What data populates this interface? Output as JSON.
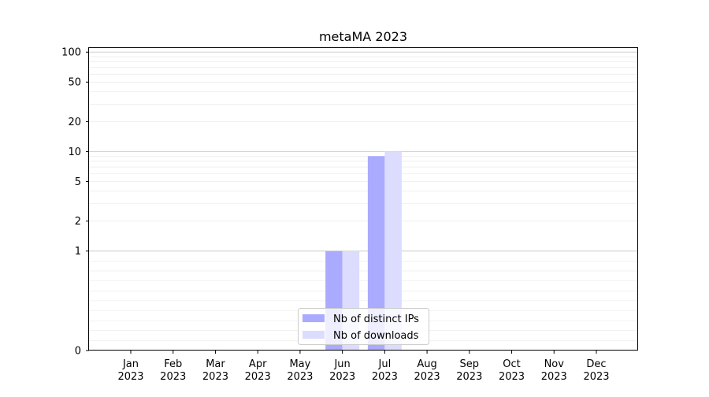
{
  "chart_data": {
    "type": "bar",
    "title": "metaMA 2023",
    "xlabel": "",
    "ylabel": "",
    "categories": [
      "Jan\n2023",
      "Feb\n2023",
      "Mar\n2023",
      "Apr\n2023",
      "May\n2023",
      "Jun\n2023",
      "Jul\n2023",
      "Aug\n2023",
      "Sep\n2023",
      "Oct\n2023",
      "Nov\n2023",
      "Dec\n2023"
    ],
    "series": [
      {
        "name": "Nb of distinct IPs",
        "values": [
          0,
          0,
          0,
          0,
          0,
          1,
          9,
          0,
          0,
          0,
          0,
          0
        ],
        "color": "#aaaaff"
      },
      {
        "name": "Nb of downloads",
        "values": [
          0,
          0,
          0,
          0,
          0,
          1,
          10,
          0,
          0,
          0,
          0,
          0
        ],
        "color": "#dcdcff"
      }
    ],
    "yscale": "symlog",
    "ylim": [
      0,
      110
    ],
    "yticks": [
      0,
      1,
      2,
      5,
      10,
      20,
      50,
      100
    ],
    "ytick_labels": [
      "0",
      "1",
      "2",
      "5",
      "10",
      "20",
      "50",
      "100"
    ],
    "grid": true,
    "legend_position": "bottom-center"
  }
}
